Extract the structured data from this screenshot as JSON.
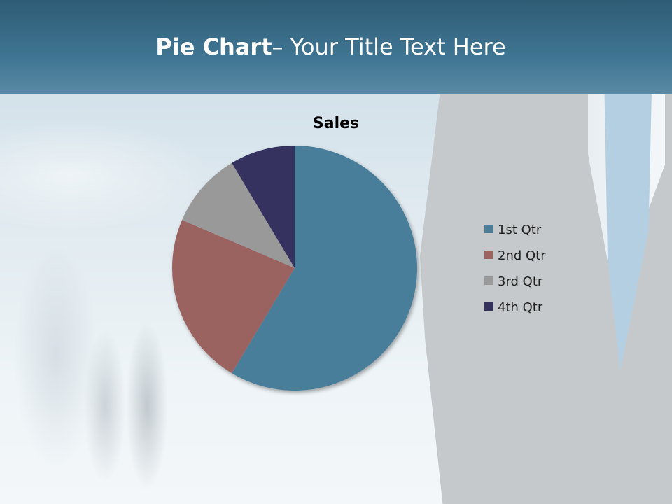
{
  "slide": {
    "title_bold": "Pie Chart",
    "title_rest": "– Your Title Text Here"
  },
  "chart_data": {
    "type": "pie",
    "title": "Sales",
    "categories": [
      "1st Qtr",
      "2nd Qtr",
      "3rd Qtr",
      "4th Qtr"
    ],
    "values": [
      8.2,
      3.2,
      1.4,
      1.2
    ],
    "colors": [
      "#4a7e9b",
      "#9b6461",
      "#999999",
      "#35315f"
    ],
    "legend": "right",
    "start_angle_deg": 0,
    "direction": "clockwise"
  }
}
